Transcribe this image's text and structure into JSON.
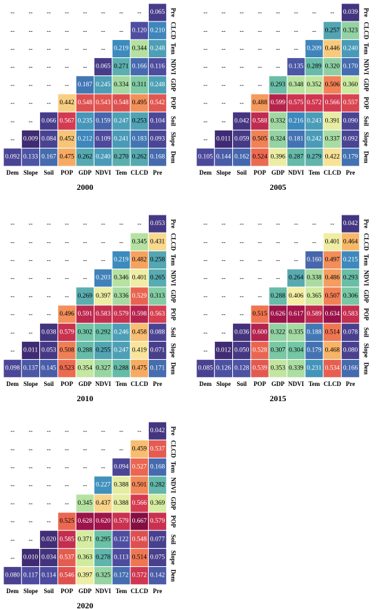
{
  "chart_data": [
    {
      "type": "heatmap",
      "title": "2000",
      "variables": [
        "Dem",
        "Slope",
        "Soil",
        "POP",
        "GDP",
        "NDVI",
        "Tem",
        "CLCD",
        "Pre"
      ],
      "rows": [
        [
          "--",
          "--",
          "--",
          "--",
          "--",
          "--",
          "--",
          "--",
          "0.065"
        ],
        [
          "--",
          "--",
          "--",
          "--",
          "--",
          "--",
          "--",
          "0.120",
          "0.210"
        ],
        [
          "--",
          "--",
          "--",
          "--",
          "--",
          "--",
          "0.219",
          "0.344",
          "0.248"
        ],
        [
          "--",
          "--",
          "--",
          "--",
          "--",
          "0.065",
          "0.271",
          "0.166",
          "0.116"
        ],
        [
          "--",
          "--",
          "--",
          "--",
          "0.187",
          "0.245",
          "0.334",
          "0.311",
          "0.248"
        ],
        [
          "--",
          "--",
          "--",
          "0.442",
          "0.548",
          "0.543",
          "0.548",
          "0.495",
          "0.542"
        ],
        [
          "--",
          "--",
          "0.066",
          "0.567",
          "0.235",
          "0.159",
          "0.247",
          "0.253",
          "0.104"
        ],
        [
          "--",
          "0.009",
          "0.084",
          "0.452",
          "0.212",
          "0.109",
          "0.241",
          "0.183",
          "0.093"
        ],
        [
          "0.092",
          "0.133",
          "0.167",
          "0.475",
          "0.262",
          "0.240",
          "0.270",
          "0.262",
          "0.168"
        ]
      ]
    },
    {
      "type": "heatmap",
      "title": "2005",
      "variables": [
        "Dem",
        "Slope",
        "Soil",
        "POP",
        "GDP",
        "NDVI",
        "Tem",
        "CLCD",
        "Pre"
      ],
      "rows": [
        [
          "--",
          "--",
          "--",
          "--",
          "--",
          "--",
          "--",
          "--",
          "0.039"
        ],
        [
          "--",
          "--",
          "--",
          "--",
          "--",
          "--",
          "--",
          "0.257",
          "0.323"
        ],
        [
          "--",
          "--",
          "--",
          "--",
          "--",
          "--",
          "0.209",
          "0.446",
          "0.240"
        ],
        [
          "--",
          "--",
          "--",
          "--",
          "--",
          "0.135",
          "0.289",
          "0.320",
          "0.170"
        ],
        [
          "--",
          "--",
          "--",
          "--",
          "0.293",
          "0.348",
          "0.352",
          "0.506",
          "0.360"
        ],
        [
          "--",
          "--",
          "--",
          "0.488",
          "0.599",
          "0.575",
          "0.572",
          "0.566",
          "0.557"
        ],
        [
          "--",
          "--",
          "0.042",
          "0.588",
          "0.332",
          "0.216",
          "0.243",
          "0.391",
          "0.090"
        ],
        [
          "--",
          "0.011",
          "0.059",
          "0.505",
          "0.324",
          "0.181",
          "0.242",
          "0.337",
          "0.092"
        ],
        [
          "0.105",
          "0.144",
          "0.162",
          "0.524",
          "0.396",
          "0.287",
          "0.279",
          "0.422",
          "0.179"
        ]
      ]
    },
    {
      "type": "heatmap",
      "title": "2010",
      "variables": [
        "Dem",
        "Slope",
        "Soil",
        "POP",
        "GDP",
        "NDVI",
        "Tem",
        "CLCD",
        "Pre"
      ],
      "rows": [
        [
          "--",
          "--",
          "--",
          "--",
          "--",
          "--",
          "--",
          "--",
          "0.053"
        ],
        [
          "--",
          "--",
          "--",
          "--",
          "--",
          "--",
          "--",
          "0.345",
          "0.431"
        ],
        [
          "--",
          "--",
          "--",
          "--",
          "--",
          "--",
          "0.219",
          "0.482",
          "0.258"
        ],
        [
          "--",
          "--",
          "--",
          "--",
          "--",
          "0.203",
          "0.346",
          "0.401",
          "0.265"
        ],
        [
          "--",
          "--",
          "--",
          "--",
          "0.269",
          "0.397",
          "0.336",
          "0.529",
          "0.313"
        ],
        [
          "--",
          "--",
          "--",
          "0.496",
          "0.591",
          "0.583",
          "0.579",
          "0.598",
          "0.563"
        ],
        [
          "--",
          "--",
          "0.038",
          "0.579",
          "0.302",
          "0.292",
          "0.246",
          "0.458",
          "0.088"
        ],
        [
          "--",
          "0.011",
          "0.053",
          "0.508",
          "0.288",
          "0.255",
          "0.247",
          "0.419",
          "0.071"
        ],
        [
          "0.098",
          "0.137",
          "0.145",
          "0.523",
          "0.354",
          "0.327",
          "0.288",
          "0.475",
          "0.171"
        ]
      ]
    },
    {
      "type": "heatmap",
      "title": "2015",
      "variables": [
        "Dem",
        "Slope",
        "Soil",
        "POP",
        "GDP",
        "NDVI",
        "Tem",
        "CLCD",
        "Pre"
      ],
      "rows": [
        [
          "--",
          "--",
          "--",
          "--",
          "--",
          "--",
          "--",
          "--",
          "0.042"
        ],
        [
          "--",
          "--",
          "--",
          "--",
          "--",
          "--",
          "--",
          "0.401",
          "0.464"
        ],
        [
          "--",
          "--",
          "--",
          "--",
          "--",
          "--",
          "0.160",
          "0.497",
          "0.215"
        ],
        [
          "--",
          "--",
          "--",
          "--",
          "--",
          "0.264",
          "0.338",
          "0.486",
          "0.293"
        ],
        [
          "--",
          "--",
          "--",
          "--",
          "0.288",
          "0.406",
          "0.365",
          "0.507",
          "0.306"
        ],
        [
          "--",
          "--",
          "--",
          "0.515",
          "0.626",
          "0.617",
          "0.589",
          "0.634",
          "0.583"
        ],
        [
          "--",
          "--",
          "0.036",
          "0.600",
          "0.322",
          "0.335",
          "0.188",
          "0.514",
          "0.078"
        ],
        [
          "--",
          "0.012",
          "0.050",
          "0.528",
          "0.307",
          "0.304",
          "0.179",
          "0.468",
          "0.080"
        ],
        [
          "0.085",
          "0.126",
          "0.128",
          "0.539",
          "0.353",
          "0.339",
          "0.231",
          "0.534",
          "0.166"
        ]
      ]
    },
    {
      "type": "heatmap",
      "title": "2020",
      "variables": [
        "Dem",
        "Slope",
        "Soil",
        "POP",
        "GDP",
        "NDVI",
        "Tem",
        "CLCD",
        "Pre"
      ],
      "rows": [
        [
          "--",
          "--",
          "--",
          "--",
          "--",
          "--",
          "--",
          "--",
          "0.042"
        ],
        [
          "--",
          "--",
          "--",
          "--",
          "--",
          "--",
          "--",
          "0.459",
          "0.537"
        ],
        [
          "--",
          "--",
          "--",
          "--",
          "--",
          "--",
          "0.094",
          "0.527",
          "0.168"
        ],
        [
          "--",
          "--",
          "--",
          "--",
          "--",
          "0.227",
          "0.388",
          "0.501",
          "0.282"
        ],
        [
          "--",
          "--",
          "--",
          "--",
          "0.345",
          "0.437",
          "0.388",
          "0.566",
          "0.369"
        ],
        [
          "--",
          "--",
          "--",
          "0.525",
          "0.628",
          "0.620",
          "0.579",
          "0.667",
          "0.579"
        ],
        [
          "--",
          "--",
          "0.020",
          "0.585",
          "0.371",
          "0.295",
          "0.122",
          "0.548",
          "0.077"
        ],
        [
          "--",
          "0.010",
          "0.034",
          "0.537",
          "0.363",
          "0.278",
          "0.113",
          "0.514",
          "0.075"
        ],
        [
          "0.080",
          "0.117",
          "0.114",
          "0.546",
          "0.397",
          "0.325",
          "0.172",
          "0.572",
          "0.142"
        ]
      ]
    }
  ]
}
